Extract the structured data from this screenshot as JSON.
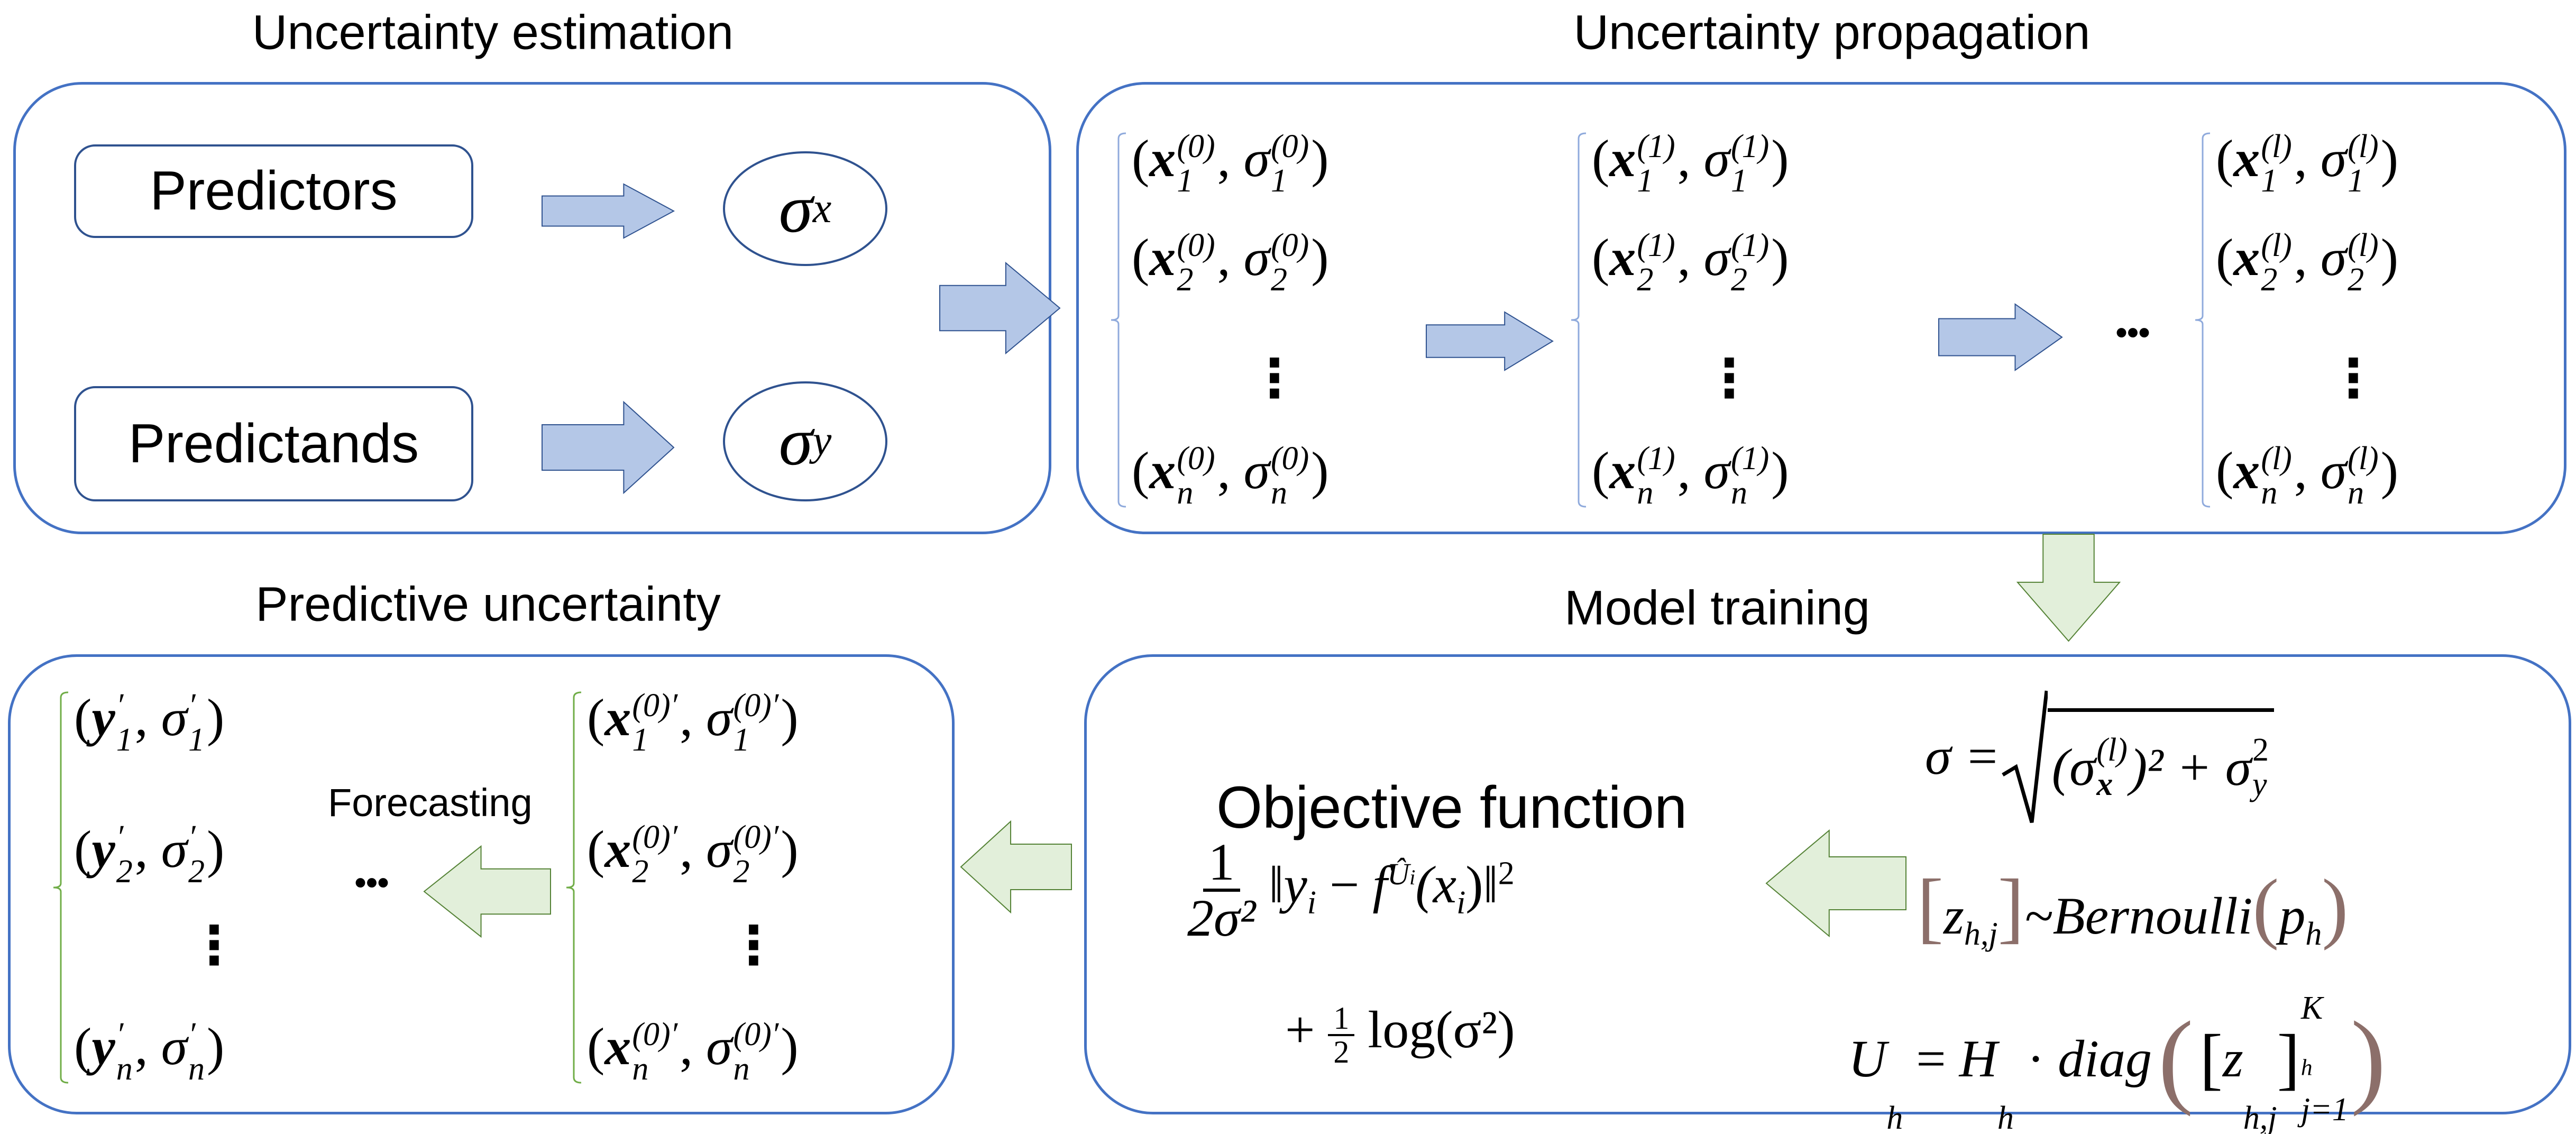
{
  "titles": {
    "estimation": "Uncertainty estimation",
    "propagation": "Uncertainty propagation",
    "predictive": "Predictive uncertainty",
    "training": "Model training"
  },
  "estimation": {
    "predictors": "Predictors",
    "predictands": "Predictands",
    "sigma_x": {
      "base": "σ",
      "sub": "x"
    },
    "sigma_y": {
      "base": "σ",
      "sub": "y"
    }
  },
  "propagation": {
    "var_x": "x",
    "var_sigma": "σ",
    "columns": [
      {
        "superscript": "(0)",
        "subscripts": [
          "1",
          "2",
          "n"
        ]
      },
      {
        "superscript": "(1)",
        "subscripts": [
          "1",
          "2",
          "n"
        ]
      },
      {
        "superscript": "(l)",
        "subscripts": [
          "1",
          "2",
          "n"
        ]
      }
    ],
    "vdots": "⋮",
    "hdots": "..."
  },
  "predictive": {
    "y_column": {
      "var": "y",
      "var_sigma": "σ",
      "superscript": "′",
      "subscripts": [
        "1",
        "2",
        "n"
      ]
    },
    "x_column": {
      "var": "x",
      "var_sigma": "σ",
      "superscript": "(0)′",
      "subscripts": [
        "1",
        "2",
        "n"
      ]
    },
    "vdots": "⋮",
    "hdots": "...",
    "forecasting_label": "Forecasting"
  },
  "training": {
    "objective_title": "Objective function",
    "objective": {
      "num": "1",
      "den": "2σ²",
      "norm_open": "‖",
      "y": "y",
      "i": "i",
      "minus": " − ",
      "f": "f",
      "f_sup": "Û",
      "f_sup_sub": "i",
      "arg": "(x",
      "arg_sub": "i",
      "arg_close": ")",
      "norm_close": "‖",
      "power": "2",
      "line2_plus": "+",
      "half_num": "1",
      "half_den": "2",
      "log": "log(σ²)"
    },
    "sigma_formula": {
      "lhs": "σ = ",
      "open": "(σ",
      "sub_x": "x",
      "sup_l": "(l)",
      "close_sq": ")² + σ",
      "sub_y": "y",
      "sup_2": "2"
    },
    "bernoulli": {
      "lb": "[",
      "z": "z",
      "z_sub": "h,j",
      "rb": "]",
      "tilde": "~Bernoulli",
      "lp": "(",
      "p": "p",
      "p_sub": "h",
      "rp": ")"
    },
    "uh_formula": {
      "U": "U",
      "U_sub": "h",
      "eq": " = ",
      "H": "H",
      "H_sub": "h",
      "dot": " · ",
      "diag": "diag",
      "lp": "(",
      "lb": "[",
      "z": "z",
      "z_sub": "h,j",
      "rb": "]",
      "upper": "K",
      "upper_sub": "h",
      "lower": "j=1",
      "rp": ")"
    }
  },
  "colors": {
    "panel_border": "#4472c4",
    "blue_arrow_fill": "#b4c7e7",
    "green_arrow_fill": "#e2efda",
    "green_arrow_stroke": "#548235",
    "bracket_brown": "#8c6f6a"
  }
}
